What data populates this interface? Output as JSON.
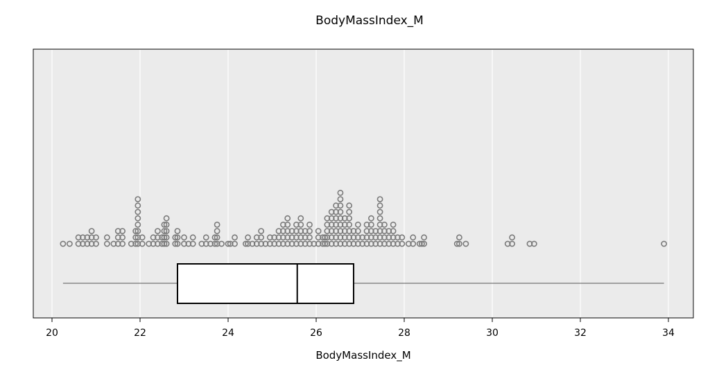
{
  "chart_data": {
    "type": "box+dotplot",
    "title": "BodyMassIndex_M",
    "xlabel": "BodyMassIndex_M",
    "xlim": [
      19.8,
      34.6
    ],
    "xticks": [
      20,
      22,
      24,
      26,
      28,
      30,
      32,
      34
    ],
    "grid": "vertical",
    "colors": {
      "panel": "#ebebeb",
      "grid": "#ffffff",
      "dot": "#7a7a7a",
      "box": "#000000"
    },
    "box": {
      "whisker_low": 20.25,
      "q1": 22.85,
      "median": 25.57,
      "q3": 26.85,
      "whisker_high": 33.9
    },
    "dots": [
      [
        20.25,
        1
      ],
      [
        20.4,
        1
      ],
      [
        20.6,
        2
      ],
      [
        20.7,
        2
      ],
      [
        20.8,
        2
      ],
      [
        20.9,
        3
      ],
      [
        21.0,
        2
      ],
      [
        21.25,
        2
      ],
      [
        21.4,
        1
      ],
      [
        21.5,
        3
      ],
      [
        21.6,
        3
      ],
      [
        21.8,
        1
      ],
      [
        21.9,
        3
      ],
      [
        21.95,
        8
      ],
      [
        22.05,
        2
      ],
      [
        22.2,
        1
      ],
      [
        22.3,
        2
      ],
      [
        22.4,
        3
      ],
      [
        22.5,
        2
      ],
      [
        22.55,
        4
      ],
      [
        22.6,
        5
      ],
      [
        22.8,
        2
      ],
      [
        22.85,
        3
      ],
      [
        23.0,
        2
      ],
      [
        23.1,
        1
      ],
      [
        23.2,
        2
      ],
      [
        23.4,
        1
      ],
      [
        23.5,
        2
      ],
      [
        23.6,
        1
      ],
      [
        23.7,
        2
      ],
      [
        23.75,
        4
      ],
      [
        23.85,
        1
      ],
      [
        24.0,
        1
      ],
      [
        24.05,
        1
      ],
      [
        24.15,
        2
      ],
      [
        24.4,
        1
      ],
      [
        24.45,
        2
      ],
      [
        24.55,
        1
      ],
      [
        24.65,
        2
      ],
      [
        24.75,
        3
      ],
      [
        24.85,
        1
      ],
      [
        24.95,
        2
      ],
      [
        25.05,
        2
      ],
      [
        25.15,
        3
      ],
      [
        25.25,
        4
      ],
      [
        25.35,
        5
      ],
      [
        25.45,
        3
      ],
      [
        25.55,
        4
      ],
      [
        25.65,
        5
      ],
      [
        25.75,
        3
      ],
      [
        25.85,
        4
      ],
      [
        25.95,
        1
      ],
      [
        26.05,
        3
      ],
      [
        26.15,
        2
      ],
      [
        26.2,
        2
      ],
      [
        26.25,
        5
      ],
      [
        26.35,
        6
      ],
      [
        26.45,
        7
      ],
      [
        26.55,
        9
      ],
      [
        26.65,
        5
      ],
      [
        26.75,
        7
      ],
      [
        26.85,
        3
      ],
      [
        26.95,
        4
      ],
      [
        27.05,
        2
      ],
      [
        27.15,
        4
      ],
      [
        27.25,
        5
      ],
      [
        27.35,
        3
      ],
      [
        27.45,
        8
      ],
      [
        27.55,
        4
      ],
      [
        27.65,
        3
      ],
      [
        27.75,
        4
      ],
      [
        27.85,
        2
      ],
      [
        27.95,
        2
      ],
      [
        28.1,
        1
      ],
      [
        28.2,
        2
      ],
      [
        28.35,
        1
      ],
      [
        28.4,
        1
      ],
      [
        28.45,
        2
      ],
      [
        29.2,
        1
      ],
      [
        29.25,
        2
      ],
      [
        29.4,
        1
      ],
      [
        30.35,
        1
      ],
      [
        30.45,
        2
      ],
      [
        30.85,
        1
      ],
      [
        30.95,
        1
      ],
      [
        33.9,
        1
      ]
    ]
  }
}
